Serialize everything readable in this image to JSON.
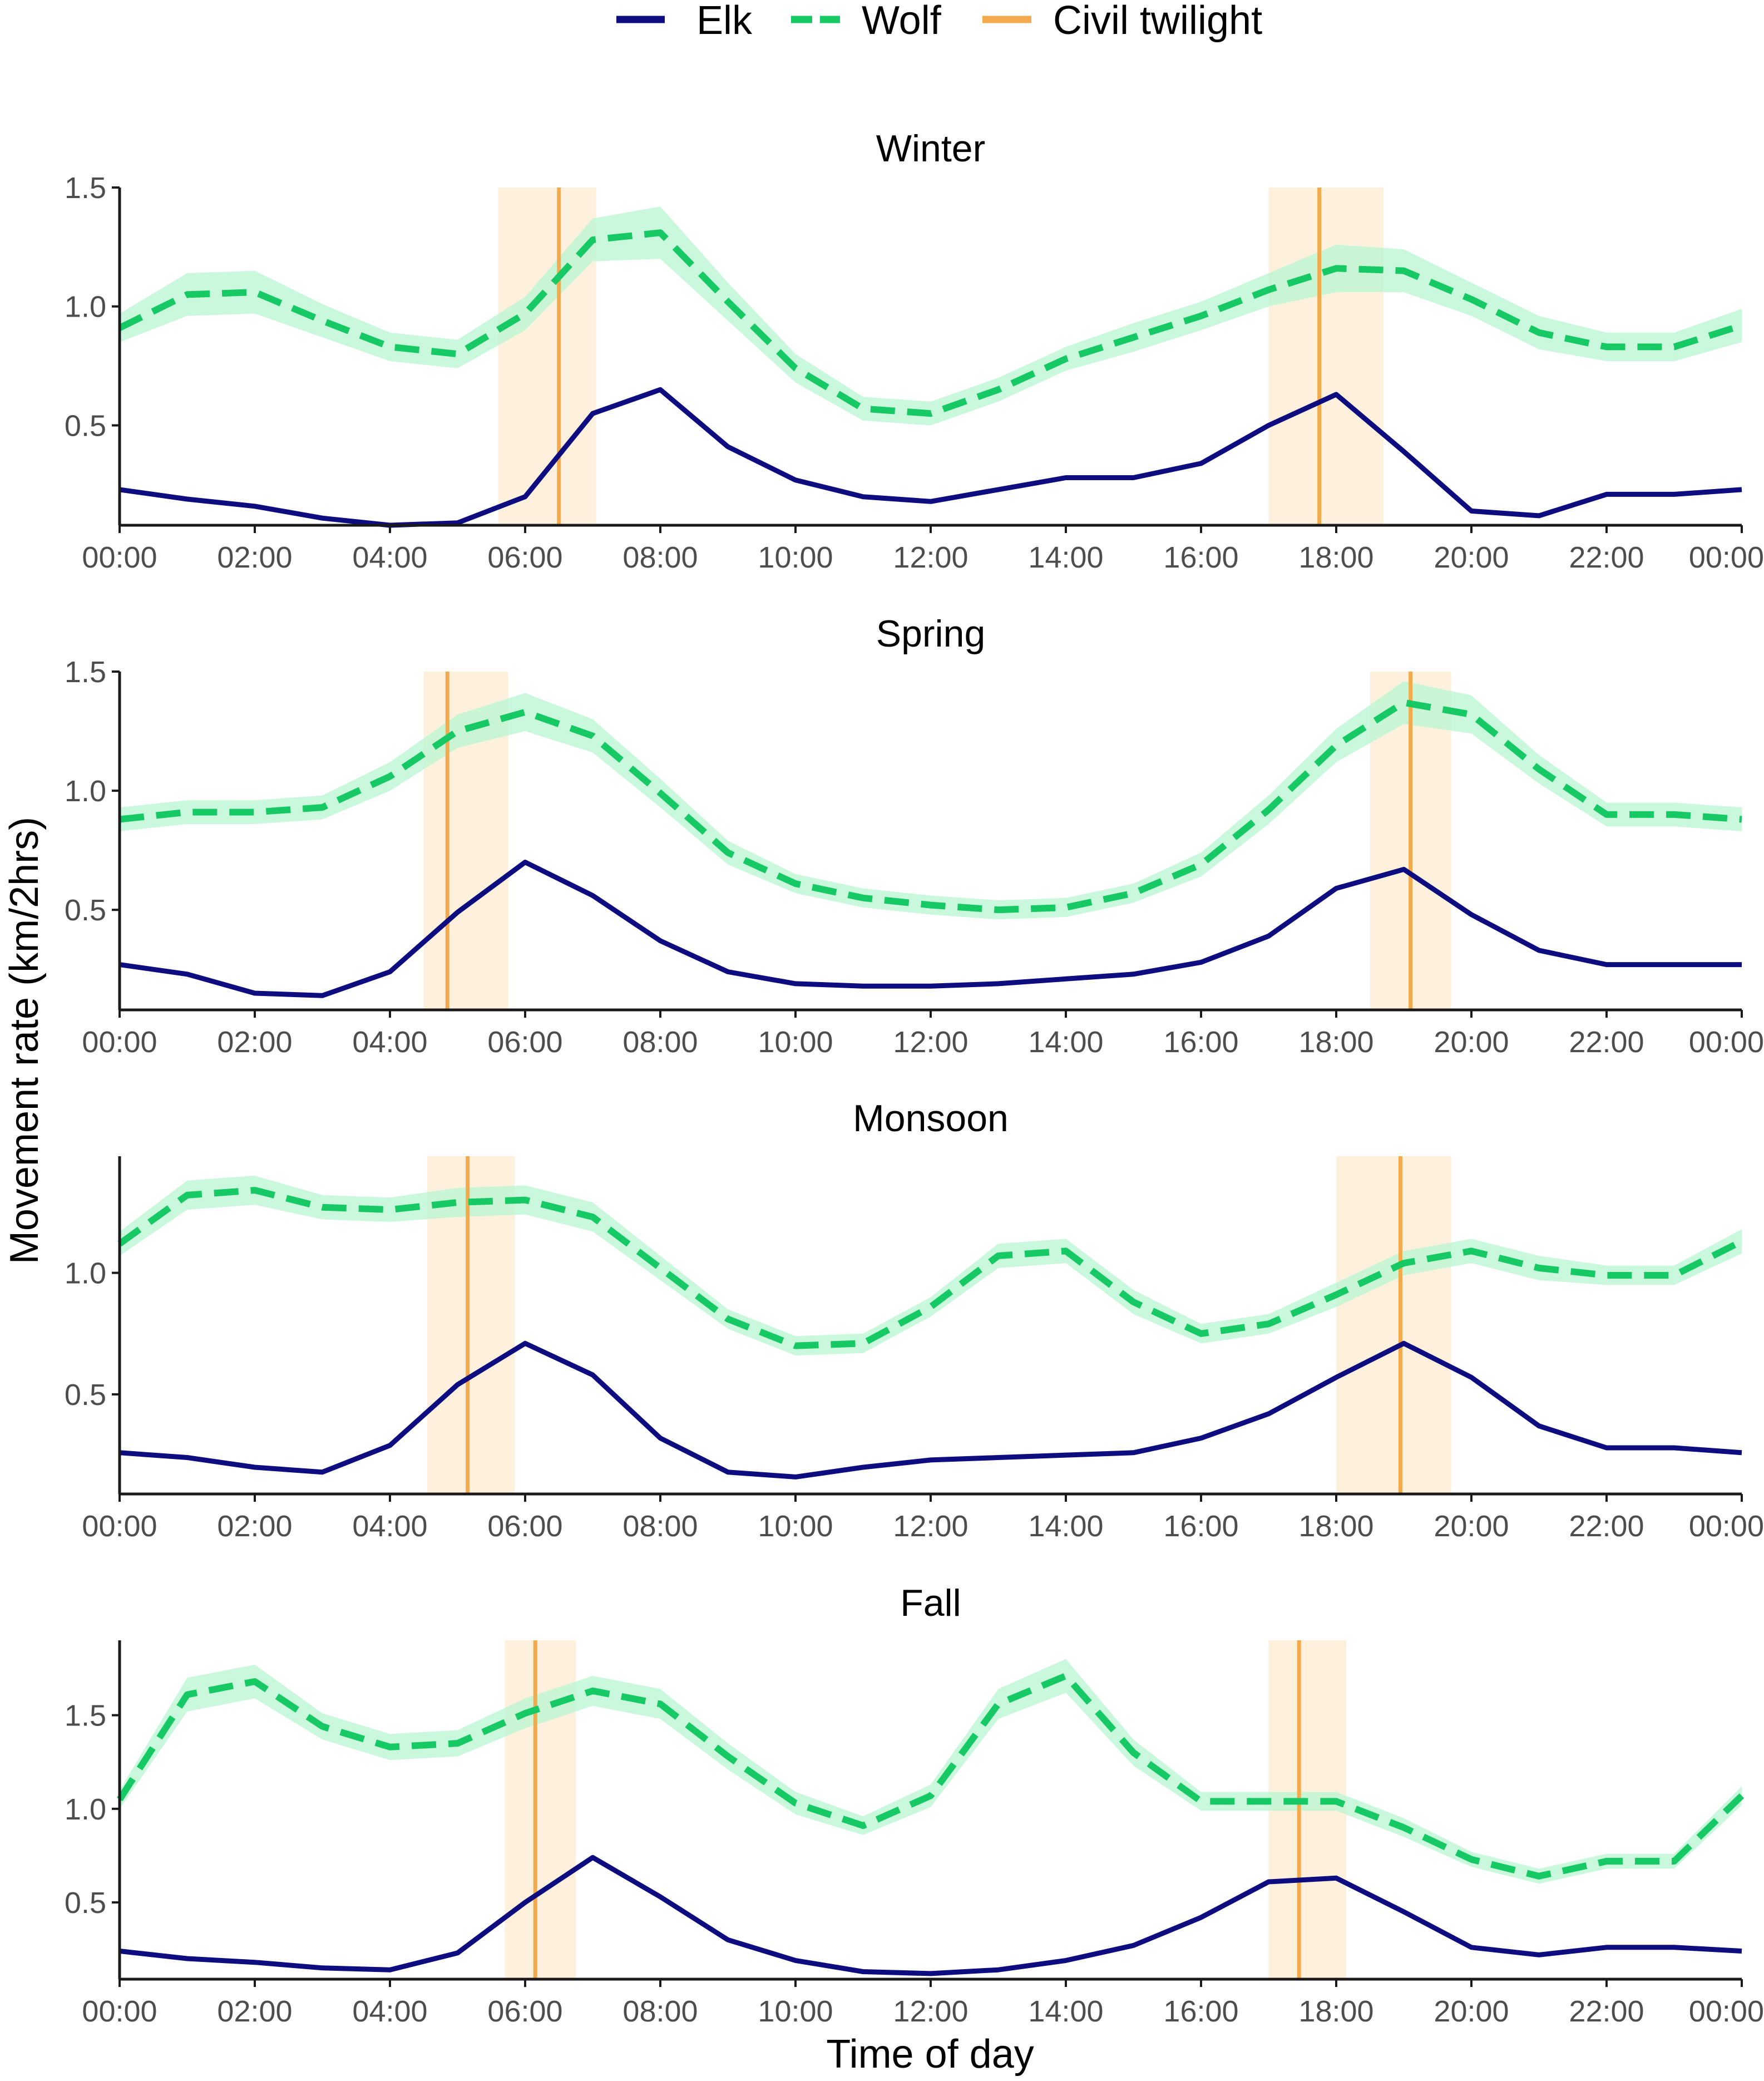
{
  "colors": {
    "elk": "#0d0d80",
    "wolf": "#17c964",
    "wolf_band": "#b8f5d2",
    "twilight": "#f2aa4c",
    "twilight_band": "#fdf0da",
    "axis": "#1a1a1a",
    "tick_text": "#4d4d4d"
  },
  "legend": {
    "elk": "Elk",
    "wolf": "Wolf",
    "twilight": "Civil twilight"
  },
  "axes": {
    "xlabel": "Time of day",
    "ylabel": "Movement rate (km/2hrs)"
  },
  "chart_data": [
    {
      "type": "line",
      "title": "Winter",
      "x": [
        0,
        1,
        2,
        3,
        4,
        5,
        6,
        7,
        8,
        9,
        10,
        11,
        12,
        13,
        14,
        15,
        16,
        17,
        18,
        19,
        20,
        21,
        22,
        23,
        24
      ],
      "xticks": [
        0,
        2,
        4,
        6,
        8,
        10,
        12,
        14,
        16,
        18,
        20,
        22,
        24
      ],
      "xtick_labels": [
        "00:00",
        "02:00",
        "04:00",
        "06:00",
        "08:00",
        "10:00",
        "12:00",
        "14:00",
        "16:00",
        "18:00",
        "20:00",
        "22:00",
        "00:00"
      ],
      "xlim": [
        0,
        24
      ],
      "ylim": [
        0.08,
        1.5
      ],
      "yticks": [
        0.5,
        1.0,
        1.5
      ],
      "ytick_labels": [
        "0.5",
        "1.0",
        "1.5"
      ],
      "series": [
        {
          "name": "Elk",
          "values": [
            0.23,
            0.19,
            0.16,
            0.11,
            0.08,
            0.09,
            0.2,
            0.55,
            0.65,
            0.41,
            0.27,
            0.2,
            0.18,
            0.23,
            0.28,
            0.28,
            0.34,
            0.5,
            0.63,
            0.39,
            0.14,
            0.12,
            0.21,
            0.21,
            0.23
          ]
        },
        {
          "name": "Wolf",
          "values": [
            0.91,
            1.05,
            1.06,
            0.94,
            0.83,
            0.8,
            0.97,
            1.28,
            1.31,
            1.02,
            0.74,
            0.57,
            0.55,
            0.65,
            0.78,
            0.87,
            0.96,
            1.07,
            1.16,
            1.15,
            1.03,
            0.89,
            0.83,
            0.83,
            0.92
          ],
          "ci_halfwidth": [
            0.06,
            0.09,
            0.09,
            0.07,
            0.06,
            0.06,
            0.07,
            0.09,
            0.11,
            0.08,
            0.06,
            0.05,
            0.05,
            0.05,
            0.05,
            0.06,
            0.06,
            0.07,
            0.1,
            0.09,
            0.07,
            0.07,
            0.06,
            0.06,
            0.07
          ]
        }
      ],
      "twilight": [
        {
          "time": 6.5,
          "start": 5.6,
          "end": 7.05
        },
        {
          "time": 17.75,
          "start": 17.0,
          "end": 18.7
        }
      ]
    },
    {
      "type": "line",
      "title": "Spring",
      "x": [
        0,
        1,
        2,
        3,
        4,
        5,
        6,
        7,
        8,
        9,
        10,
        11,
        12,
        13,
        14,
        15,
        16,
        17,
        18,
        19,
        20,
        21,
        22,
        23,
        24
      ],
      "xticks": [
        0,
        2,
        4,
        6,
        8,
        10,
        12,
        14,
        16,
        18,
        20,
        22,
        24
      ],
      "xtick_labels": [
        "00:00",
        "02:00",
        "04:00",
        "06:00",
        "08:00",
        "10:00",
        "12:00",
        "14:00",
        "16:00",
        "18:00",
        "20:00",
        "22:00",
        "00:00"
      ],
      "xlim": [
        0,
        24
      ],
      "ylim": [
        0.08,
        1.5
      ],
      "yticks": [
        0.5,
        1.0,
        1.5
      ],
      "ytick_labels": [
        "0.5",
        "1.0",
        "1.5"
      ],
      "series": [
        {
          "name": "Elk",
          "values": [
            0.27,
            0.23,
            0.15,
            0.14,
            0.24,
            0.49,
            0.7,
            0.56,
            0.37,
            0.24,
            0.19,
            0.18,
            0.18,
            0.19,
            0.21,
            0.23,
            0.28,
            0.39,
            0.59,
            0.67,
            0.48,
            0.33,
            0.27,
            0.27,
            0.27
          ]
        },
        {
          "name": "Wolf",
          "values": [
            0.88,
            0.91,
            0.91,
            0.93,
            1.06,
            1.25,
            1.33,
            1.23,
            0.99,
            0.74,
            0.61,
            0.55,
            0.52,
            0.5,
            0.51,
            0.57,
            0.69,
            0.92,
            1.19,
            1.37,
            1.32,
            1.09,
            0.9,
            0.9,
            0.88
          ],
          "ci_halfwidth": [
            0.05,
            0.05,
            0.05,
            0.05,
            0.06,
            0.07,
            0.08,
            0.07,
            0.06,
            0.05,
            0.04,
            0.04,
            0.04,
            0.04,
            0.04,
            0.04,
            0.05,
            0.06,
            0.07,
            0.09,
            0.08,
            0.06,
            0.05,
            0.05,
            0.05
          ]
        }
      ],
      "twilight": [
        {
          "time": 4.85,
          "start": 4.5,
          "end": 5.75
        },
        {
          "time": 19.1,
          "start": 18.5,
          "end": 19.7
        }
      ]
    },
    {
      "type": "line",
      "title": "Monsoon",
      "x": [
        0,
        1,
        2,
        3,
        4,
        5,
        6,
        7,
        8,
        9,
        10,
        11,
        12,
        13,
        14,
        15,
        16,
        17,
        18,
        19,
        20,
        21,
        22,
        23,
        24
      ],
      "xticks": [
        0,
        2,
        4,
        6,
        8,
        10,
        12,
        14,
        16,
        18,
        20,
        22,
        24
      ],
      "xtick_labels": [
        "00:00",
        "02:00",
        "04:00",
        "06:00",
        "08:00",
        "10:00",
        "12:00",
        "14:00",
        "16:00",
        "18:00",
        "20:00",
        "22:00",
        "00:00"
      ],
      "xlim": [
        0,
        24
      ],
      "ylim": [
        0.09,
        1.48
      ],
      "yticks": [
        0.5,
        1.0
      ],
      "ytick_labels": [
        "0.5",
        "1.0"
      ],
      "series": [
        {
          "name": "Elk",
          "values": [
            0.26,
            0.24,
            0.2,
            0.18,
            0.29,
            0.54,
            0.71,
            0.58,
            0.32,
            0.18,
            0.16,
            0.2,
            0.23,
            0.24,
            0.25,
            0.26,
            0.32,
            0.42,
            0.57,
            0.71,
            0.57,
            0.37,
            0.28,
            0.28,
            0.26
          ]
        },
        {
          "name": "Wolf",
          "values": [
            1.12,
            1.32,
            1.34,
            1.27,
            1.26,
            1.29,
            1.3,
            1.23,
            1.02,
            0.81,
            0.7,
            0.71,
            0.86,
            1.07,
            1.09,
            0.88,
            0.75,
            0.79,
            0.91,
            1.04,
            1.09,
            1.02,
            0.99,
            0.99,
            1.13
          ],
          "ci_halfwidth": [
            0.05,
            0.06,
            0.06,
            0.05,
            0.05,
            0.06,
            0.06,
            0.06,
            0.05,
            0.04,
            0.04,
            0.04,
            0.04,
            0.05,
            0.05,
            0.05,
            0.04,
            0.04,
            0.05,
            0.05,
            0.05,
            0.05,
            0.04,
            0.04,
            0.05
          ]
        }
      ],
      "twilight": [
        {
          "time": 5.15,
          "start": 4.55,
          "end": 5.85
        },
        {
          "time": 18.95,
          "start": 18.0,
          "end": 19.7
        }
      ]
    },
    {
      "type": "line",
      "title": "Fall",
      "x": [
        0,
        1,
        2,
        3,
        4,
        5,
        6,
        7,
        8,
        9,
        10,
        11,
        12,
        13,
        14,
        15,
        16,
        17,
        18,
        19,
        20,
        21,
        22,
        23,
        24
      ],
      "xticks": [
        0,
        2,
        4,
        6,
        8,
        10,
        12,
        14,
        16,
        18,
        20,
        22,
        24
      ],
      "xtick_labels": [
        "00:00",
        "02:00",
        "04:00",
        "06:00",
        "08:00",
        "10:00",
        "12:00",
        "14:00",
        "16:00",
        "18:00",
        "20:00",
        "22:00",
        "00:00"
      ],
      "xlim": [
        0,
        24
      ],
      "ylim": [
        0.09,
        1.9
      ],
      "yticks": [
        0.5,
        1.0,
        1.5
      ],
      "ytick_labels": [
        "0.5",
        "1.0",
        "1.5"
      ],
      "series": [
        {
          "name": "Elk",
          "values": [
            0.24,
            0.2,
            0.18,
            0.15,
            0.14,
            0.23,
            0.5,
            0.74,
            0.53,
            0.3,
            0.19,
            0.13,
            0.12,
            0.14,
            0.19,
            0.27,
            0.42,
            0.61,
            0.63,
            0.45,
            0.26,
            0.22,
            0.26,
            0.26,
            0.24
          ]
        },
        {
          "name": "Wolf",
          "values": [
            1.05,
            1.61,
            1.68,
            1.44,
            1.33,
            1.35,
            1.51,
            1.63,
            1.56,
            1.28,
            1.03,
            0.91,
            1.07,
            1.56,
            1.71,
            1.3,
            1.04,
            1.04,
            1.04,
            0.9,
            0.73,
            0.64,
            0.72,
            0.72,
            1.07
          ],
          "ci_halfwidth": [
            0.05,
            0.09,
            0.09,
            0.07,
            0.07,
            0.07,
            0.08,
            0.08,
            0.08,
            0.07,
            0.06,
            0.05,
            0.06,
            0.08,
            0.09,
            0.07,
            0.05,
            0.05,
            0.05,
            0.05,
            0.04,
            0.04,
            0.04,
            0.04,
            0.05
          ]
        }
      ],
      "twilight": [
        {
          "time": 6.15,
          "start": 5.7,
          "end": 6.75
        },
        {
          "time": 17.45,
          "start": 17.0,
          "end": 18.15
        }
      ]
    }
  ]
}
